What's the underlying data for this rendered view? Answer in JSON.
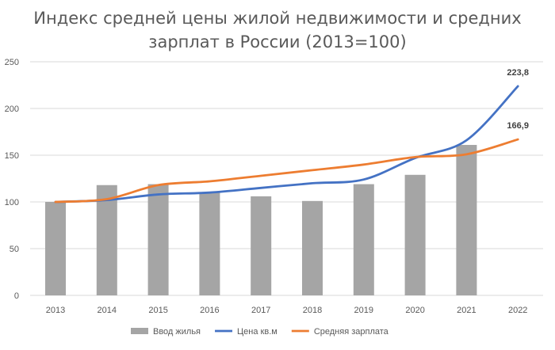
{
  "chart_data": {
    "type": "bar",
    "title": "Индекс средней цены жилой недвижимости  и средних зарплат в России (2013=100)",
    "title_lines": [
      "Индекс средней цены жилой недвижимости  и средних",
      "зарплат в России (2013=100)"
    ],
    "categories": [
      "2013",
      "2014",
      "2015",
      "2016",
      "2017",
      "2018",
      "2019",
      "2020",
      "2021",
      "2022"
    ],
    "ylim": [
      0,
      250
    ],
    "yticks": [
      0,
      50,
      100,
      150,
      200,
      250
    ],
    "grid": true,
    "legend_position": "bottom",
    "series": [
      {
        "name": "Ввод жилья",
        "type": "bar",
        "color": "#a5a5a5",
        "values": [
          100,
          118,
          119,
          110,
          106,
          101,
          119,
          129,
          161,
          null
        ]
      },
      {
        "name": "Цена кв.м",
        "type": "line",
        "color": "#4472c4",
        "values": [
          100,
          102,
          108,
          110,
          115,
          120,
          124,
          147,
          166,
          223.8
        ]
      },
      {
        "name": "Средняя зарплата",
        "type": "line",
        "color": "#ed7d31",
        "values": [
          100,
          103,
          118,
          122,
          128,
          134,
          140,
          148,
          151,
          166.9
        ]
      }
    ],
    "data_labels": [
      {
        "series": "Цена кв.м",
        "category": "2022",
        "text": "223,8"
      },
      {
        "series": "Средняя зарплата",
        "category": "2022",
        "text": "166,9"
      }
    ]
  }
}
